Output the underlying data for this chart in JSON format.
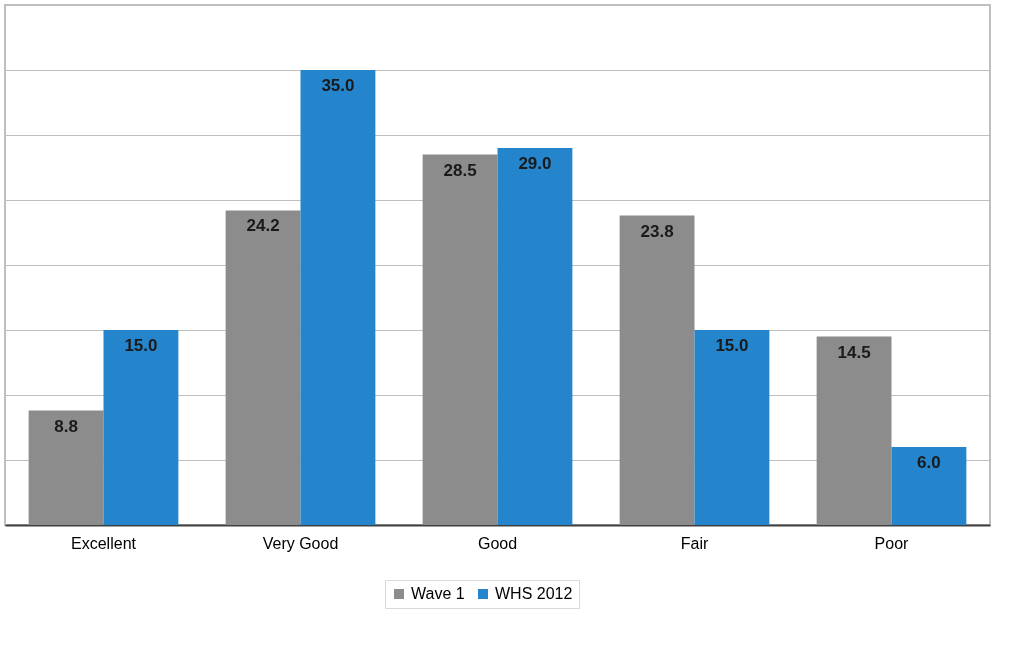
{
  "chart_data": {
    "type": "bar",
    "categories": [
      "Excellent",
      "Very Good",
      "Good",
      "Fair",
      "Poor"
    ],
    "series": [
      {
        "name": "Wave 1",
        "color": "#8c8c8c",
        "values": [
          8.8,
          24.2,
          28.5,
          23.8,
          14.5
        ],
        "value_labels": [
          "8.8",
          "24.2",
          "28.5",
          "23.8",
          "14.5"
        ]
      },
      {
        "name": "WHS 2012",
        "color": "#2585cc",
        "values": [
          15,
          35,
          29,
          15,
          6
        ],
        "value_labels": [
          "15.0",
          "35.0",
          "29.0",
          "15.0",
          "6.0"
        ]
      }
    ],
    "ylim": [
      0,
      40
    ],
    "yticks": [
      {
        "value": 0,
        "label": null
      },
      {
        "value": 5,
        "label": null
      },
      {
        "value": 10,
        "label": null
      },
      {
        "value": 15,
        "label": null
      },
      {
        "value": 20,
        "label": null
      },
      {
        "value": 25,
        "label": null
      },
      {
        "value": 30,
        "label": null
      },
      {
        "value": 35,
        "label": null
      },
      {
        "value": 40,
        "label": null
      }
    ],
    "tick_labels": "x",
    "grid": "y",
    "legend": "bottom"
  }
}
